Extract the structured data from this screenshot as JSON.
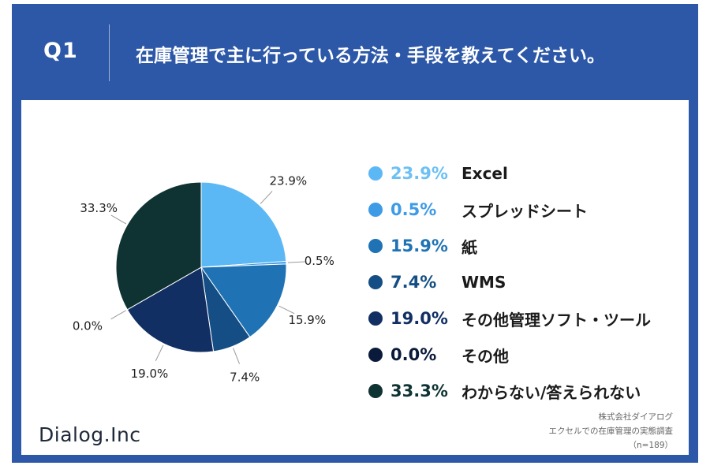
{
  "header": {
    "q_label": "Q1",
    "title": "在庫管理で主に行っている方法・手段を教えてください。"
  },
  "chart_data": {
    "type": "pie",
    "title": "在庫管理で主に行っている方法・手段を教えてください。",
    "categories": [
      "Excel",
      "スプレッドシート",
      "紙",
      "WMS",
      "その他管理ソフト・ツール",
      "その他",
      "わからない/答えられない"
    ],
    "values": [
      23.9,
      0.5,
      15.9,
      7.4,
      19.0,
      0.0,
      33.3
    ],
    "value_labels": [
      "23.9%",
      "0.5%",
      "15.9%",
      "7.4%",
      "19.0%",
      "0.0%",
      "33.3%"
    ],
    "colors": [
      "#5cb8f5",
      "#3e9be6",
      "#1f73b5",
      "#144e84",
      "#112f63",
      "#0a1a3a",
      "#0f3232"
    ],
    "legend_text_colors": [
      "#6cc0f5",
      "#3e9be6",
      "#1f73b5",
      "#144e84",
      "#112f63",
      "#0a1a3a",
      "#0f3232"
    ],
    "legend_placement": "right",
    "unit": "%",
    "start_angle_deg": 0,
    "direction": "clockwise"
  },
  "footer": {
    "logo": "Dialog.Inc",
    "source_lines": [
      "株式会社ダイアログ",
      "エクセルでの在庫管理の実態調査",
      "（n=189）"
    ]
  },
  "colors": {
    "frame": "#2d58a8",
    "panel": "#ffffff"
  }
}
